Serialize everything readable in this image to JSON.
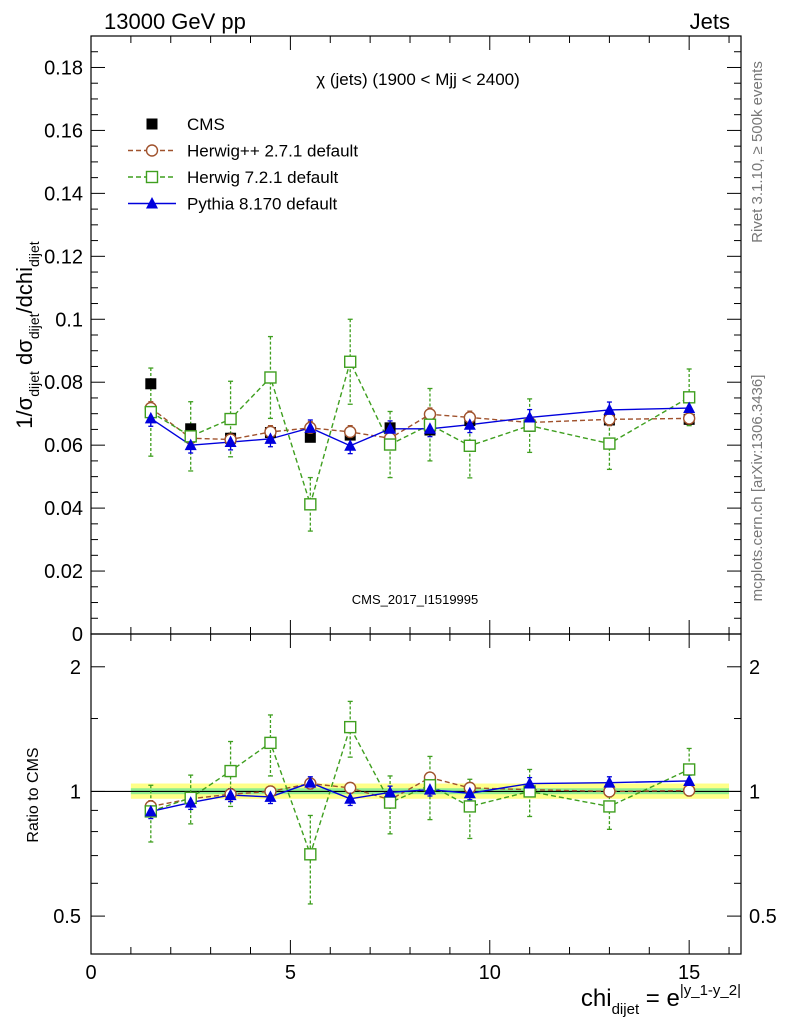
{
  "header": {
    "left": "13000 GeV pp",
    "right": "Jets"
  },
  "side_labels": {
    "top": "Rivet 3.1.10, ≥ 500k events",
    "bottom": "mcplots.cern.ch [arXiv:1306.3436]"
  },
  "watermark": "CMS_2017_I1519995",
  "colors": {
    "cms": "#000000",
    "herwig_pp": "#a0522d",
    "herwig7": "#3f9f1f",
    "pythia": "#0000dd",
    "band_outer": "#ffff88",
    "band_inner": "#90ee90"
  },
  "chart_data": [
    {
      "type": "line",
      "title": "χ (jets) (1900 < Mjj < 2400)",
      "ylabel": "1/σ_dijet dσ_dijet/dchi_dijet",
      "ylim": [
        0,
        0.19
      ],
      "xlim": [
        0,
        16.3
      ],
      "yticks": [
        {
          "v": 0,
          "label": "0"
        },
        {
          "v": 0.02,
          "label": "0.02"
        },
        {
          "v": 0.04,
          "label": "0.04"
        },
        {
          "v": 0.06,
          "label": "0.06"
        },
        {
          "v": 0.08,
          "label": "0.08"
        },
        {
          "v": 0.1,
          "label": "0.1"
        },
        {
          "v": 0.12,
          "label": "0.12"
        },
        {
          "v": 0.14,
          "label": "0.14"
        },
        {
          "v": 0.16,
          "label": "0.16"
        },
        {
          "v": 0.18,
          "label": "0.18"
        }
      ],
      "legend_position": "top-left",
      "legend": [
        {
          "label": "CMS",
          "series": "cms"
        },
        {
          "label": "Herwig++ 2.7.1 default",
          "series": "herwig_pp"
        },
        {
          "label": "Herwig 7.2.1 default",
          "series": "herwig7"
        },
        {
          "label": "Pythia 8.170 default",
          "series": "pythia"
        }
      ],
      "series": [
        {
          "key": "cms",
          "name": "CMS",
          "marker": "filled-square",
          "x": [
            1.5,
            2.5,
            3.5,
            4.5,
            5.5,
            6.5,
            7.5,
            8.5,
            9.5,
            11,
            13,
            15
          ],
          "y": [
            0.0795,
            0.0652,
            0.0622,
            0.064,
            0.0625,
            0.0632,
            0.0655,
            0.0648,
            0.0678,
            0.066,
            0.068,
            0.0682
          ],
          "err": [
            0.001,
            0.001,
            0.001,
            0.001,
            0.001,
            0.001,
            0.001,
            0.001,
            0.001,
            0.001,
            0.001,
            0.001
          ]
        },
        {
          "key": "herwig_pp",
          "name": "Herwig++ 2.7.1 default",
          "marker": "open-circle",
          "x": [
            1.5,
            2.5,
            3.5,
            4.5,
            5.5,
            6.5,
            7.5,
            8.5,
            9.5,
            11,
            13,
            15
          ],
          "y": [
            0.0718,
            0.0622,
            0.0618,
            0.0642,
            0.0655,
            0.0642,
            0.0622,
            0.0698,
            0.0688,
            0.0672,
            0.0682,
            0.0685
          ],
          "err": [
            0.002,
            0.002,
            0.002,
            0.002,
            0.002,
            0.002,
            0.002,
            0.002,
            0.002,
            0.002,
            0.002,
            0.002
          ]
        },
        {
          "key": "herwig7",
          "name": "Herwig 7.2.1 default",
          "marker": "open-square",
          "x": [
            1.5,
            2.5,
            3.5,
            4.5,
            5.5,
            6.5,
            7.5,
            8.5,
            9.5,
            11,
            13,
            15
          ],
          "y": [
            0.0705,
            0.0628,
            0.0683,
            0.0815,
            0.0412,
            0.0865,
            0.0602,
            0.0665,
            0.0598,
            0.0662,
            0.0605,
            0.0752
          ],
          "err": [
            0.014,
            0.011,
            0.012,
            0.013,
            0.0085,
            0.0135,
            0.0105,
            0.0115,
            0.0102,
            0.0085,
            0.0082,
            0.009
          ]
        },
        {
          "key": "pythia",
          "name": "Pythia 8.170 default",
          "marker": "filled-triangle",
          "x": [
            1.5,
            2.5,
            3.5,
            4.5,
            5.5,
            6.5,
            7.5,
            8.5,
            9.5,
            11,
            13,
            15
          ],
          "y": [
            0.0685,
            0.06,
            0.061,
            0.062,
            0.0655,
            0.0598,
            0.0652,
            0.0652,
            0.0665,
            0.0688,
            0.0712,
            0.0718
          ],
          "err": [
            0.0025,
            0.0025,
            0.0025,
            0.0025,
            0.0025,
            0.0025,
            0.0025,
            0.0025,
            0.0025,
            0.0025,
            0.0025,
            0.0025
          ]
        }
      ]
    },
    {
      "type": "line",
      "ylabel": "Ratio to CMS",
      "xlabel": "chi_dijet = e^|y_1-y_2|",
      "yscale": "log",
      "ylim": [
        0.405,
        2.4
      ],
      "xlim": [
        0,
        16.3
      ],
      "yticks": [
        {
          "v": 0.5,
          "label": "0.5"
        },
        {
          "v": 1,
          "label": "1"
        },
        {
          "v": 2,
          "label": "2"
        }
      ],
      "xticks": [
        {
          "v": 0,
          "label": "0"
        },
        {
          "v": 5,
          "label": "5"
        },
        {
          "v": 10,
          "label": "10"
        },
        {
          "v": 15,
          "label": "15"
        }
      ],
      "reference": 1,
      "band": {
        "x": [
          1,
          16
        ],
        "outer": [
          0.96,
          1.045
        ],
        "inner": [
          0.985,
          1.018
        ]
      },
      "series": [
        {
          "key": "herwig_pp",
          "name": "Herwig++ 2.7.1 default",
          "marker": "open-circle",
          "x": [
            1.5,
            2.5,
            3.5,
            4.5,
            5.5,
            6.5,
            7.5,
            8.5,
            9.5,
            11,
            13,
            15
          ],
          "y": [
            0.92,
            0.96,
            0.985,
            1.0,
            1.045,
            1.02,
            0.955,
            1.08,
            1.02,
            1.01,
            1.0,
            1.005
          ],
          "err": [
            0.03,
            0.03,
            0.03,
            0.03,
            0.03,
            0.03,
            0.03,
            0.03,
            0.03,
            0.03,
            0.03,
            0.03
          ]
        },
        {
          "key": "herwig7",
          "name": "Herwig 7.2.1 default",
          "marker": "open-square",
          "x": [
            1.5,
            2.5,
            3.5,
            4.5,
            5.5,
            6.5,
            7.5,
            8.5,
            9.5,
            11,
            13,
            15
          ],
          "y": [
            0.895,
            0.965,
            1.12,
            1.31,
            0.705,
            1.43,
            0.94,
            1.035,
            0.92,
            1.0,
            0.92,
            1.13
          ],
          "err": [
            0.14,
            0.13,
            0.2,
            0.22,
            0.17,
            0.22,
            0.15,
            0.18,
            0.15,
            0.13,
            0.11,
            0.14
          ]
        },
        {
          "key": "pythia",
          "name": "Pythia 8.170 default",
          "marker": "filled-triangle",
          "x": [
            1.5,
            2.5,
            3.5,
            4.5,
            5.5,
            6.5,
            7.5,
            8.5,
            9.5,
            11,
            13,
            15
          ],
          "y": [
            0.895,
            0.94,
            0.98,
            0.97,
            1.05,
            0.96,
            0.995,
            1.01,
            0.99,
            1.045,
            1.05,
            1.06
          ],
          "err": [
            0.035,
            0.035,
            0.035,
            0.035,
            0.035,
            0.035,
            0.035,
            0.035,
            0.035,
            0.035,
            0.035,
            0.035
          ]
        }
      ]
    }
  ]
}
